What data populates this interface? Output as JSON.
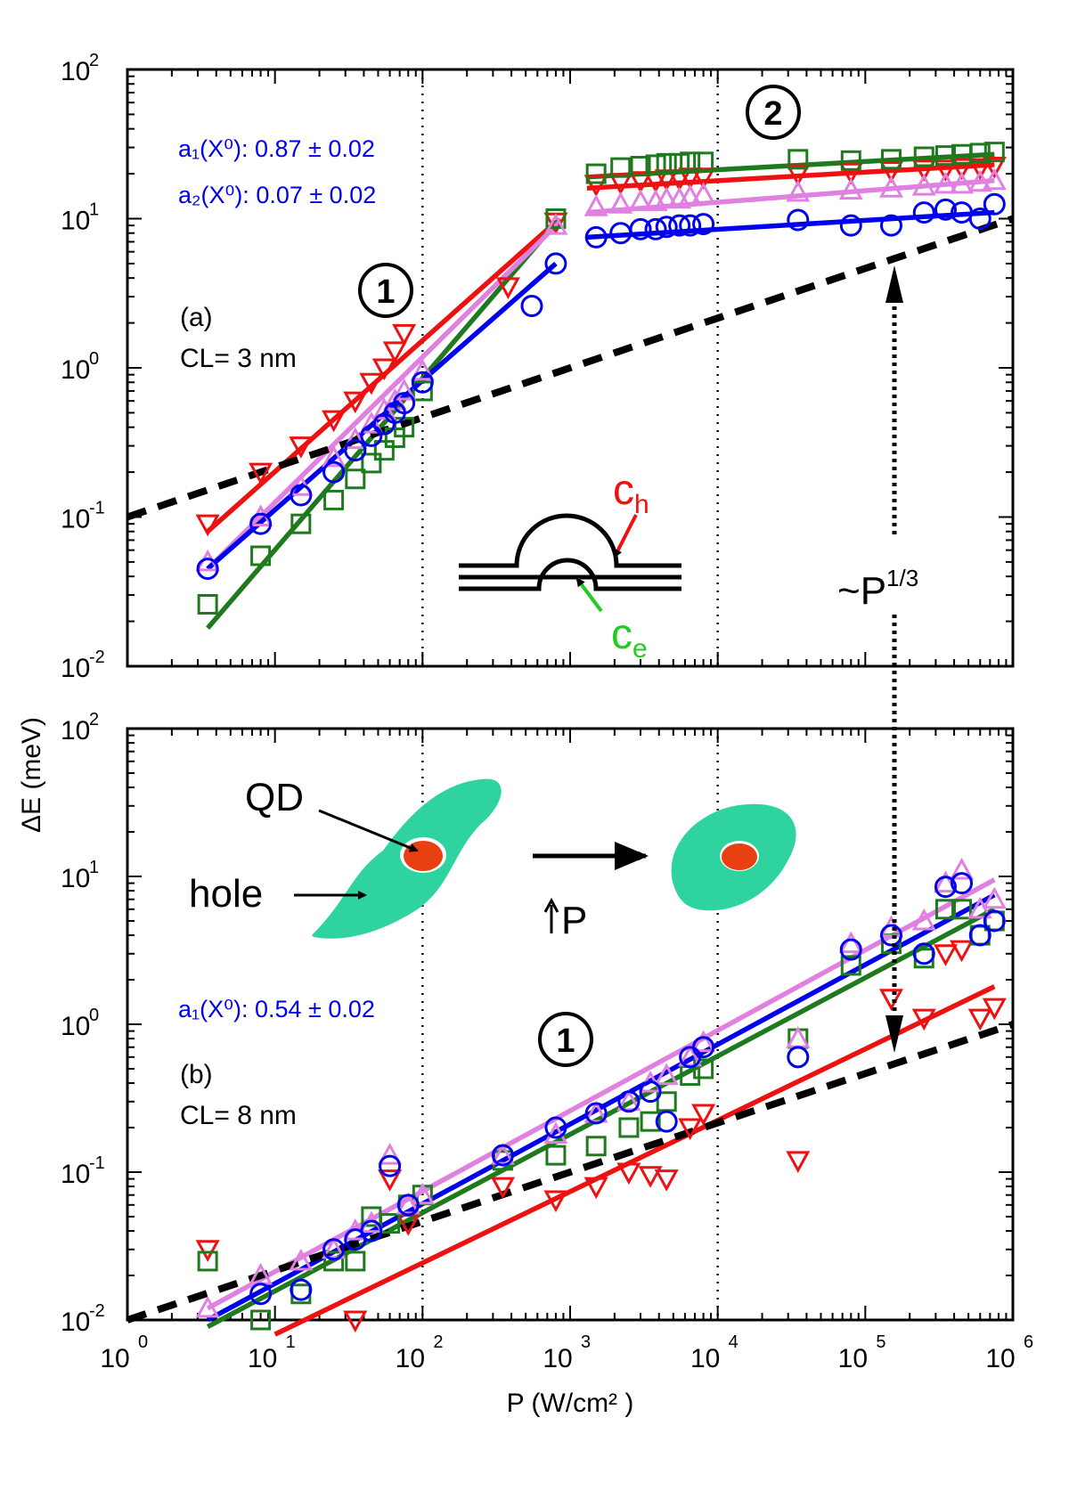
{
  "colors": {
    "blue": "#0000ee",
    "green": "#1f7a1f",
    "red": "#ee1111",
    "violet": "#e080e0",
    "black": "#000000",
    "cyan": "#2fd3a0",
    "orange": "#e84010"
  },
  "y_axis_label": "ΔE (meV)",
  "x_axis_label": "P (W/cm² )",
  "x_ticks": [
    {
      "base": "10",
      "exp": "0"
    },
    {
      "base": "10",
      "exp": "1"
    },
    {
      "base": "10",
      "exp": "2"
    },
    {
      "base": "10",
      "exp": "3"
    },
    {
      "base": "10",
      "exp": "4"
    },
    {
      "base": "10",
      "exp": "5"
    },
    {
      "base": "10",
      "exp": "6"
    }
  ],
  "y_ticks_a": [
    {
      "base": "10",
      "exp": "-2"
    },
    {
      "base": "10",
      "exp": "-1"
    },
    {
      "base": "10",
      "exp": "0"
    },
    {
      "base": "10",
      "exp": "1"
    },
    {
      "base": "10",
      "exp": "2"
    }
  ],
  "y_ticks_b": [
    {
      "base": "10",
      "exp": "-2"
    },
    {
      "base": "10",
      "exp": "-1"
    },
    {
      "base": "10",
      "exp": "0"
    },
    {
      "base": "10",
      "exp": "1"
    },
    {
      "base": "10",
      "exp": "2"
    }
  ],
  "panel_a": {
    "label": "(a)",
    "cl": "CL= 3 nm",
    "fit1": "a₁(X⁰): 0.87 ±  0.02",
    "fit2": "a₂(X⁰): 0.07 ± 0.02",
    "region1": "1",
    "region2": "2",
    "ch": "c",
    "ch_sub": "h",
    "ce": "c",
    "ce_sub": "e",
    "scaling": "~P",
    "scaling_sup": "1/3"
  },
  "panel_b": {
    "label": "(b)",
    "cl": "CL= 8 nm",
    "fit1": "a₁(X⁰): 0.54 ±  0.02",
    "region1": "1",
    "qd": "QD",
    "hole": "hole",
    "arrow_p": "P"
  },
  "chart_data": [
    {
      "type": "scatter",
      "title": "(a) CL= 3 nm",
      "xlabel": "P (W/cm²)",
      "ylabel": "ΔE (meV)",
      "xscale": "log",
      "yscale": "log",
      "xlim": [
        1,
        1000000
      ],
      "ylim": [
        0.01,
        100
      ],
      "vlines": [
        100,
        10000
      ],
      "series": [
        {
          "name": "red",
          "marker": "triangle-down",
          "x": [
            3.5,
            8,
            15,
            25,
            35,
            45,
            55,
            65,
            75,
            380,
            800,
            1500,
            2200,
            3000,
            3800,
            4500,
            5500,
            6500,
            8000,
            35000,
            80000,
            150000,
            250000,
            350000,
            450000,
            600000,
            750000
          ],
          "y": [
            0.09,
            0.2,
            0.3,
            0.45,
            0.6,
            0.8,
            1.0,
            1.3,
            1.7,
            3.5,
            9.5,
            17,
            17.5,
            18,
            18,
            18.5,
            18.5,
            19,
            19,
            20,
            20.5,
            21,
            21.5,
            21.5,
            22,
            22,
            22.5
          ]
        },
        {
          "name": "green",
          "marker": "square",
          "x": [
            3.5,
            8,
            15,
            25,
            35,
            45,
            55,
            65,
            75,
            100,
            800,
            1500,
            2200,
            3000,
            3800,
            4500,
            5500,
            6500,
            8000,
            35000,
            80000,
            150000,
            250000,
            350000,
            450000,
            600000,
            750000
          ],
          "y": [
            0.026,
            0.055,
            0.09,
            0.13,
            0.18,
            0.23,
            0.28,
            0.34,
            0.4,
            0.7,
            10,
            20,
            22,
            22.5,
            23,
            23.5,
            23.5,
            24,
            24,
            25,
            24.5,
            25,
            26,
            26.5,
            27,
            27.5,
            28
          ]
        },
        {
          "name": "violet",
          "marker": "triangle-up",
          "x": [
            3.5,
            8,
            15,
            25,
            35,
            45,
            55,
            65,
            75,
            100,
            800,
            1500,
            2200,
            3000,
            3800,
            4500,
            5500,
            6500,
            8000,
            35000,
            80000,
            150000,
            250000,
            350000,
            450000,
            600000,
            750000
          ],
          "y": [
            0.05,
            0.1,
            0.16,
            0.25,
            0.33,
            0.42,
            0.52,
            0.6,
            0.7,
            0.95,
            9,
            12,
            12.5,
            13,
            13,
            13.5,
            13.5,
            14,
            14.5,
            15,
            15.5,
            16,
            16.5,
            17,
            17,
            17.5,
            18
          ]
        },
        {
          "name": "blue",
          "marker": "circle",
          "x": [
            3.5,
            8,
            15,
            25,
            35,
            45,
            55,
            65,
            75,
            100,
            550,
            800,
            1500,
            2200,
            3000,
            3800,
            4500,
            5500,
            6500,
            8000,
            35000,
            80000,
            150000,
            250000,
            350000,
            450000,
            600000,
            750000
          ],
          "y": [
            0.045,
            0.09,
            0.14,
            0.2,
            0.28,
            0.35,
            0.42,
            0.5,
            0.58,
            0.8,
            2.6,
            5,
            7.5,
            8,
            8.5,
            8.5,
            8.8,
            9,
            9,
            9.2,
            9.8,
            9,
            9,
            11,
            11.5,
            11,
            10,
            12.5
          ]
        }
      ],
      "fits": [
        {
          "name": "red",
          "x1": 3.5,
          "y1": 0.08,
          "x2": 800,
          "y2": 9.5
        },
        {
          "name": "green",
          "x1": 3.5,
          "y1": 0.018,
          "x2": 850,
          "y2": 10
        },
        {
          "name": "violet",
          "x1": 3.5,
          "y1": 0.045,
          "x2": 850,
          "y2": 9.5
        },
        {
          "name": "blue",
          "x1": 3.5,
          "y1": 0.045,
          "x2": 800,
          "y2": 5
        },
        {
          "name": "green",
          "x1": 1300,
          "y1": 19,
          "x2": 750000,
          "y2": 27
        },
        {
          "name": "red",
          "x1": 1300,
          "y1": 16,
          "x2": 750000,
          "y2": 23
        },
        {
          "name": "violet",
          "x1": 1300,
          "y1": 11,
          "x2": 750000,
          "y2": 18
        },
        {
          "name": "blue",
          "x1": 1300,
          "y1": 7.5,
          "x2": 750000,
          "y2": 11
        },
        {
          "name": "black-dashed",
          "x1": 1,
          "y1": 0.1,
          "x2": 1000000,
          "y2": 10
        }
      ]
    },
    {
      "type": "scatter",
      "title": "(b) CL= 8 nm",
      "xlabel": "P (W/cm²)",
      "ylabel": "ΔE (meV)",
      "xscale": "log",
      "yscale": "log",
      "xlim": [
        1,
        1000000
      ],
      "ylim": [
        0.01,
        100
      ],
      "vlines": [
        100,
        10000
      ],
      "series": [
        {
          "name": "red",
          "marker": "triangle-down",
          "x": [
            3.5,
            35,
            60,
            80,
            350,
            800,
            1500,
            2500,
            3500,
            4500,
            6500,
            8000,
            35000,
            150000,
            250000,
            350000,
            450000,
            600000,
            750000
          ],
          "y": [
            0.03,
            0.01,
            0.09,
            0.045,
            0.08,
            0.065,
            0.08,
            0.1,
            0.095,
            0.09,
            0.2,
            0.25,
            0.12,
            1.5,
            1.1,
            3,
            3.2,
            1.1,
            1.3
          ]
        },
        {
          "name": "green",
          "marker": "square",
          "x": [
            3.5,
            8,
            15,
            25,
            35,
            45,
            60,
            80,
            100,
            350,
            800,
            1500,
            2500,
            3500,
            4500,
            6500,
            8000,
            35000,
            80000,
            150000,
            250000,
            350000,
            450000,
            600000,
            750000
          ],
          "y": [
            0.025,
            0.01,
            0.015,
            0.025,
            0.025,
            0.05,
            0.045,
            0.06,
            0.07,
            0.12,
            0.13,
            0.15,
            0.2,
            0.22,
            0.3,
            0.45,
            0.5,
            0.8,
            2.5,
            3.5,
            2.8,
            6,
            6,
            4,
            5
          ]
        },
        {
          "name": "violet",
          "marker": "triangle-up",
          "x": [
            3.5,
            8,
            15,
            25,
            35,
            45,
            60,
            80,
            100,
            350,
            800,
            1500,
            2500,
            3500,
            4500,
            6500,
            8000,
            35000,
            80000,
            150000,
            250000,
            350000,
            450000,
            600000,
            750000
          ],
          "y": [
            0.012,
            0.02,
            0.025,
            0.03,
            0.04,
            0.045,
            0.13,
            0.06,
            0.07,
            0.13,
            0.18,
            0.25,
            0.3,
            0.4,
            0.45,
            0.6,
            0.75,
            0.8,
            3.5,
            4.5,
            5,
            9,
            11,
            6,
            7
          ]
        },
        {
          "name": "blue",
          "marker": "circle",
          "x": [
            8,
            15,
            25,
            35,
            45,
            60,
            80,
            350,
            800,
            1500,
            2500,
            3500,
            4500,
            6500,
            8000,
            35000,
            80000,
            150000,
            250000,
            350000,
            450000,
            600000,
            750000
          ],
          "y": [
            0.015,
            0.016,
            0.03,
            0.035,
            0.04,
            0.11,
            0.06,
            0.13,
            0.2,
            0.25,
            0.3,
            0.35,
            0.22,
            0.6,
            0.7,
            0.6,
            3.2,
            4,
            3,
            8.5,
            9,
            4,
            5
          ]
        }
      ],
      "fits": [
        {
          "name": "violet",
          "x1": 3.5,
          "y1": 0.012,
          "x2": 750000,
          "y2": 9.5
        },
        {
          "name": "blue",
          "x1": 3.5,
          "y1": 0.01,
          "x2": 750000,
          "y2": 7.5
        },
        {
          "name": "green",
          "x1": 3.5,
          "y1": 0.009,
          "x2": 750000,
          "y2": 6
        },
        {
          "name": "red",
          "x1": 10,
          "y1": 0.008,
          "x2": 750000,
          "y2": 1.8
        },
        {
          "name": "black-dashed",
          "x1": 1,
          "y1": 0.01,
          "x2": 1000000,
          "y2": 1
        }
      ]
    }
  ]
}
